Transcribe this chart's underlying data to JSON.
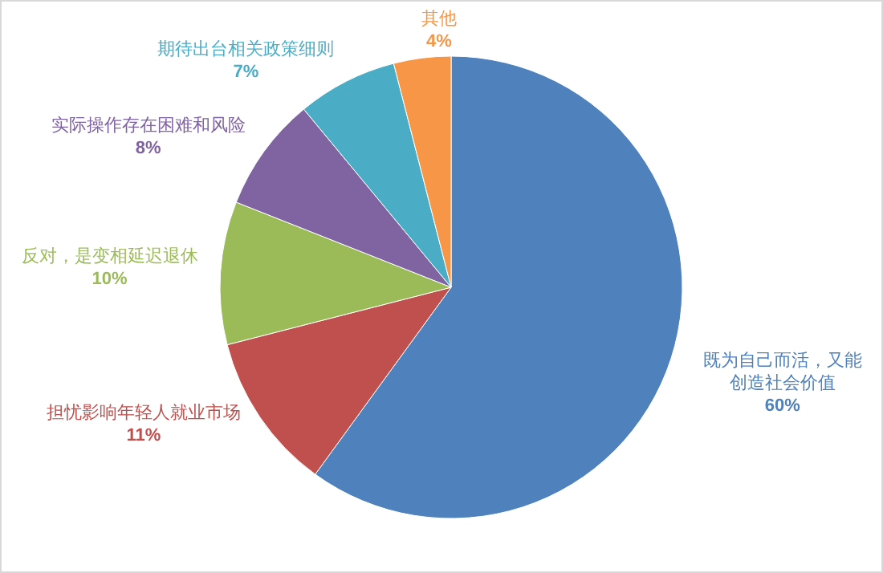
{
  "chart_data": {
    "type": "pie",
    "value_labels": [
      "60%",
      "11%",
      "10%",
      "8%",
      "7%",
      "4%"
    ],
    "categories": [
      "既为自己而活，又能创造社会价值",
      "担忧影响年轻人就业市场",
      "反对，是变相延迟退休",
      "实际操作存在困难和风险",
      "期待出台相关政策细则",
      "其他"
    ],
    "values": [
      60,
      11,
      10,
      8,
      7,
      4
    ],
    "colors": [
      "#4f81bd",
      "#c0504d",
      "#9bbb59",
      "#8064a2",
      "#4bacc6",
      "#f79646"
    ]
  }
}
